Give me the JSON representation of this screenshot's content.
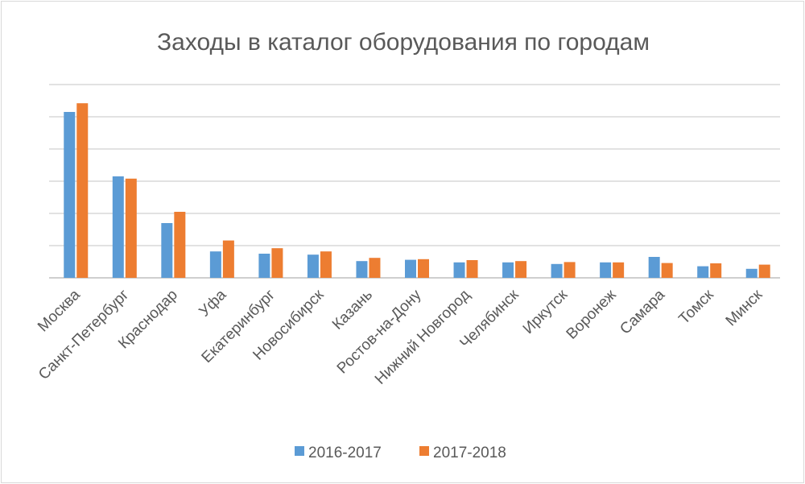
{
  "chart_data": {
    "type": "bar",
    "title": "Заходы в каталог оборудования по городам",
    "xlabel": "",
    "ylabel": "",
    "ylim": [
      0,
      600
    ],
    "grid": true,
    "legend": "bottom",
    "categories": [
      "Москва",
      "Санкт-Петербург",
      "Краснодар",
      "Уфа",
      "Екатеринбург",
      "Новосибирск",
      "Казань",
      "Ростов-на-Дону",
      "Нижний Новгород",
      "Челябинск",
      "Иркутск",
      "Воронеж",
      "Самара",
      "Томск",
      "Минск"
    ],
    "series": [
      {
        "name": "2016-2017",
        "color": "#5B9BD5",
        "values": [
          515,
          315,
          170,
          82,
          75,
          72,
          52,
          56,
          48,
          48,
          43,
          48,
          65,
          36,
          28
        ]
      },
      {
        "name": "2017-2018",
        "color": "#ED7D31",
        "values": [
          542,
          308,
          205,
          116,
          92,
          82,
          62,
          58,
          55,
          52,
          49,
          48,
          46,
          45,
          41
        ]
      }
    ]
  }
}
